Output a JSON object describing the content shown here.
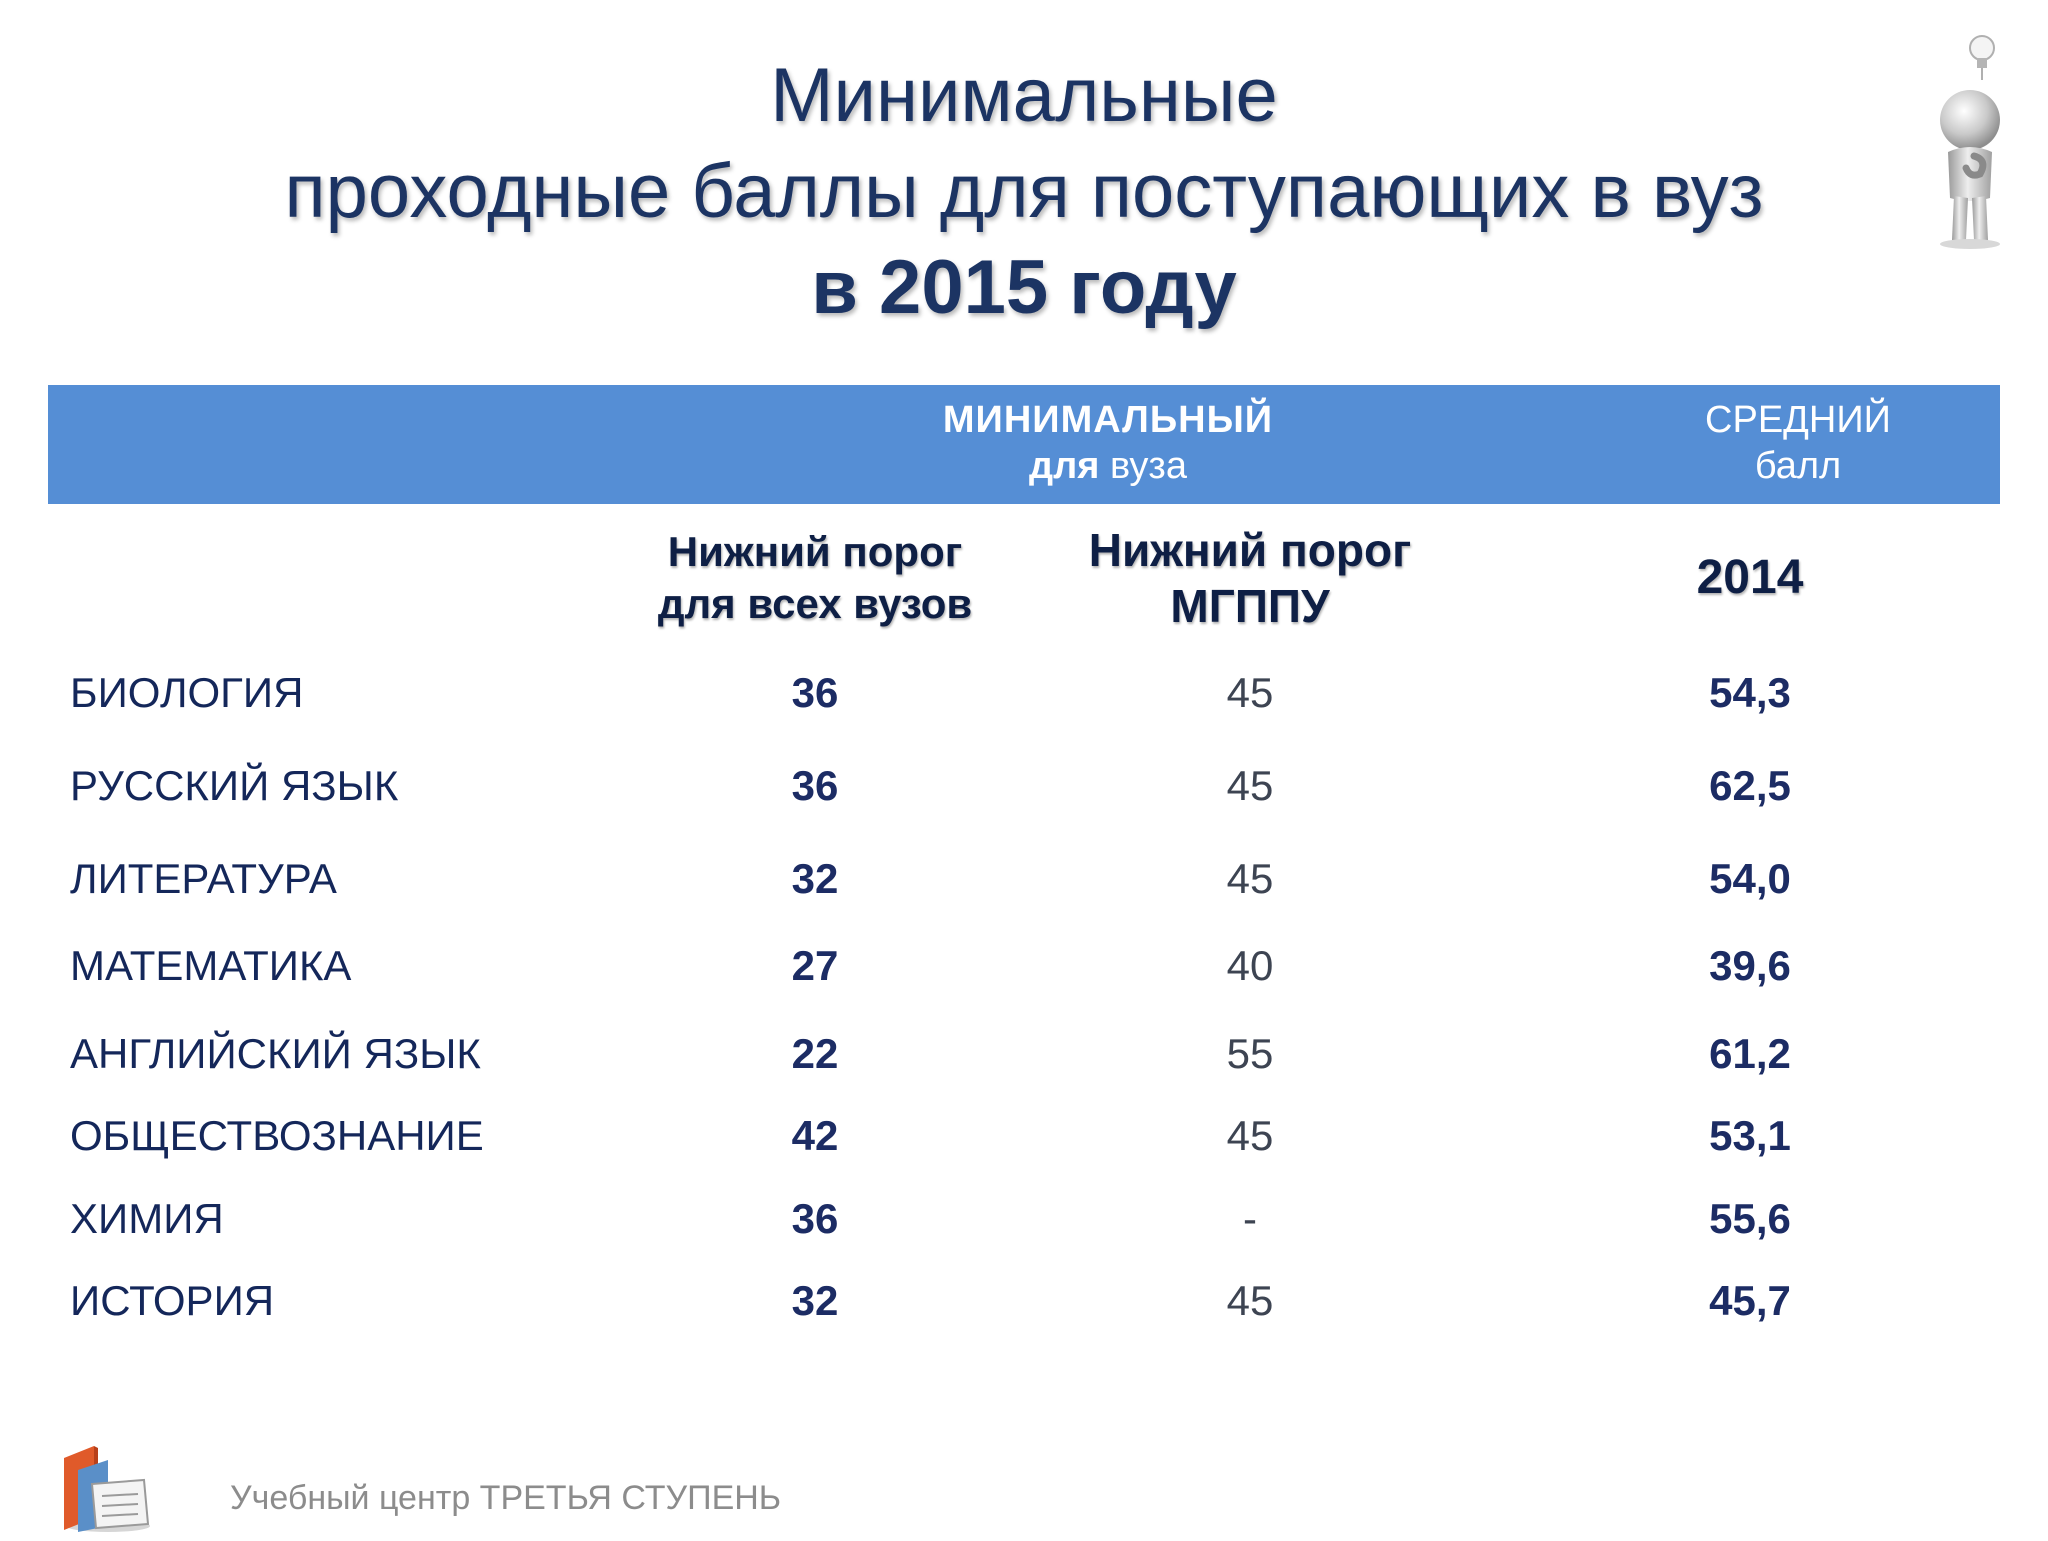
{
  "title": {
    "line1": "Минимальные",
    "line2": "проходные баллы для поступающих в вуз",
    "line3": "в 2015 году"
  },
  "band": {
    "min_line1": "МИНИМАЛЬНЫЙ",
    "min_line2_bold": "для",
    "min_line2_rest": " вуза",
    "avg_line1": "СРЕДНИЙ",
    "avg_line2": "балл"
  },
  "columns": {
    "all_line1": "Нижний порог",
    "all_line2": "для всех вузов",
    "mgppu_line1": "Нижний порог",
    "mgppu_line2": "МГППУ",
    "year": "2014"
  },
  "rows": [
    {
      "subject": "БИОЛОГИЯ",
      "min_all": "36",
      "min_mgppu": "45",
      "avg": "54,3"
    },
    {
      "subject": "РУССКИЙ ЯЗЫК",
      "min_all": "36",
      "min_mgppu": "45",
      "avg": "62,5"
    },
    {
      "subject": "ЛИТЕРАТУРА",
      "min_all": "32",
      "min_mgppu": "45",
      "avg": "54,0"
    },
    {
      "subject": "МАТЕМАТИКА",
      "min_all": "27",
      "min_mgppu": "40",
      "avg": "39,6"
    },
    {
      "subject": "АНГЛИЙСКИЙ ЯЗЫК",
      "min_all": "22",
      "min_mgppu": "55",
      "avg": "61,2"
    },
    {
      "subject": "ОБЩЕСТВОЗНАНИЕ",
      "min_all": "42",
      "min_mgppu": "45",
      "avg": "53,1"
    },
    {
      "subject": "ХИМИЯ",
      "min_all": "36",
      "min_mgppu": "-",
      "avg": "55,6"
    },
    {
      "subject": "ИСТОРИЯ",
      "min_all": "32",
      "min_mgppu": "45",
      "avg": "45,7"
    }
  ],
  "footer": {
    "text": "Учебный центр ТРЕТЬЯ СТУПЕНЬ"
  },
  "icons": {
    "figure": "thinking-person-lightbulb-icon",
    "logo": "books-logo-icon"
  },
  "colors": {
    "band": "#558ed5",
    "title": "#1c3463"
  }
}
